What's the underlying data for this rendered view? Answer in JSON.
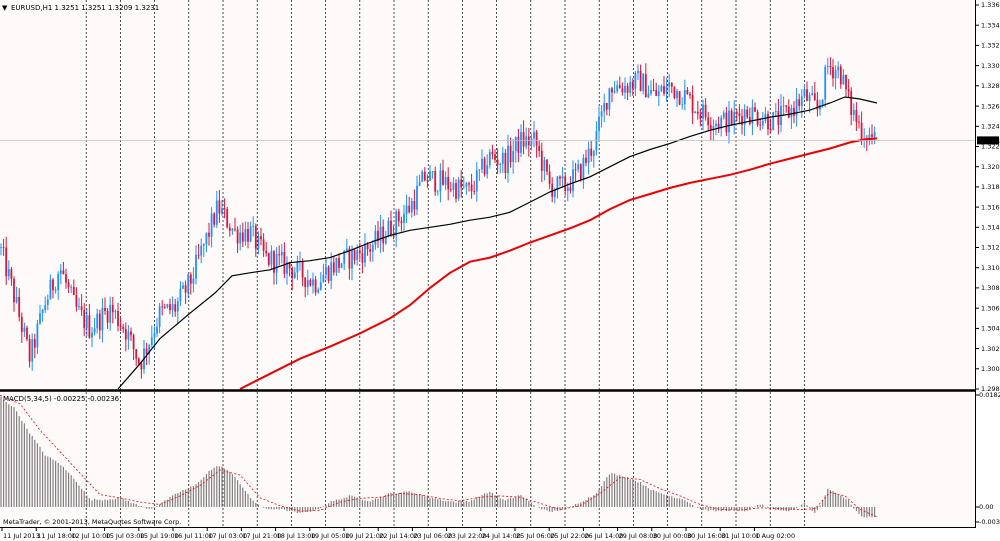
{
  "chart_header": {
    "title": "EURUSD,H1  1.3251 1.3251 1.3209 1.3231",
    "arrow": "▼"
  },
  "indicator_header": {
    "title": "MACD(5,34,5) -0.00225 -0.00236"
  },
  "watermark": "MetaTrader, © 2001-2013, MetaQuotes Software Corp.",
  "current_price": "1.3231",
  "colors": {
    "bg": "#FFFAFA",
    "bull": "#1E90FF",
    "bear": "#DC143C",
    "ma_fast": "#000000",
    "ma_slow": "#EE0000",
    "macd_hist": "#808080",
    "macd_signal": "#FF0000",
    "grid": "#000000"
  },
  "chart_data": [
    {
      "type": "candlestick",
      "symbol": "EURUSD",
      "timeframe": "H1",
      "ylim": [
        1.2985,
        1.3365
      ],
      "y_ticks": [
        "1.3365",
        "1.3345",
        "1.3325",
        "1.3305",
        "1.3285",
        "1.3265",
        "1.3245",
        "1.3225",
        "1.3205",
        "1.3185",
        "1.3165",
        "1.3145",
        "1.3125",
        "1.3105",
        "1.3085",
        "1.3065",
        "1.3045",
        "1.3025",
        "1.3005",
        "1.2985"
      ],
      "x_ticks": [
        "11 Jul 2013",
        "11 Jul 18:00",
        "12 Jul 10:00",
        "15 Jul 03:00",
        "15 Jul 19:00",
        "16 Jul 11:00",
        "17 Jul 03:00",
        "17 Jul 21:00",
        "18 Jul 13:00",
        "19 Jul 05:00",
        "19 Jul 21:00",
        "22 Jul 14:00",
        "23 Jul 06:00",
        "23 Jul 22:00",
        "24 Jul 14:00",
        "25 Jul 06:00",
        "25 Jul 22:00",
        "26 Jul 14:00",
        "29 Jul 08:00",
        "30 Jul 00:00",
        "30 Jul 16:00",
        "31 Jul 10:00",
        "1 Aug 02:00"
      ],
      "close_path": [
        [
          0,
          1.3125
        ],
        [
          12,
          1.3085
        ],
        [
          30,
          1.3015
        ],
        [
          45,
          1.307
        ],
        [
          60,
          1.3105
        ],
        [
          75,
          1.3065
        ],
        [
          90,
          1.3045
        ],
        [
          110,
          1.3065
        ],
        [
          125,
          1.3045
        ],
        [
          140,
          1.301
        ],
        [
          160,
          1.306
        ],
        [
          175,
          1.3065
        ],
        [
          190,
          1.309
        ],
        [
          205,
          1.313
        ],
        [
          218,
          1.3165
        ],
        [
          235,
          1.314
        ],
        [
          250,
          1.314
        ],
        [
          265,
          1.3115
        ],
        [
          280,
          1.311
        ],
        [
          300,
          1.31
        ],
        [
          315,
          1.309
        ],
        [
          330,
          1.3105
        ],
        [
          350,
          1.3115
        ],
        [
          370,
          1.3125
        ],
        [
          390,
          1.3145
        ],
        [
          410,
          1.3165
        ],
        [
          425,
          1.3195
        ],
        [
          440,
          1.319
        ],
        [
          455,
          1.3185
        ],
        [
          470,
          1.318
        ],
        [
          490,
          1.3215
        ],
        [
          505,
          1.321
        ],
        [
          520,
          1.323
        ],
        [
          535,
          1.323
        ],
        [
          550,
          1.3185
        ],
        [
          565,
          1.3185
        ],
        [
          580,
          1.32
        ],
        [
          595,
          1.323
        ],
        [
          610,
          1.3285
        ],
        [
          625,
          1.3285
        ],
        [
          640,
          1.329
        ],
        [
          655,
          1.3275
        ],
        [
          670,
          1.3285
        ],
        [
          685,
          1.3275
        ],
        [
          700,
          1.326
        ],
        [
          715,
          1.325
        ],
        [
          730,
          1.325
        ],
        [
          745,
          1.326
        ],
        [
          760,
          1.3255
        ],
        [
          775,
          1.325
        ],
        [
          790,
          1.326
        ],
        [
          805,
          1.3275
        ],
        [
          818,
          1.326
        ],
        [
          828,
          1.3305
        ],
        [
          840,
          1.33
        ],
        [
          850,
          1.3265
        ],
        [
          862,
          1.324
        ],
        [
          877,
          1.3231
        ]
      ],
      "ma_fast": [
        [
          118,
          1.2985
        ],
        [
          140,
          1.301
        ],
        [
          160,
          1.3035
        ],
        [
          190,
          1.306
        ],
        [
          215,
          1.308
        ],
        [
          232,
          1.3097
        ],
        [
          250,
          1.31
        ],
        [
          270,
          1.3103
        ],
        [
          290,
          1.311
        ],
        [
          310,
          1.3112
        ],
        [
          330,
          1.3115
        ],
        [
          350,
          1.3122
        ],
        [
          370,
          1.313
        ],
        [
          390,
          1.3137
        ],
        [
          410,
          1.3142
        ],
        [
          430,
          1.3145
        ],
        [
          450,
          1.3148
        ],
        [
          470,
          1.3152
        ],
        [
          490,
          1.3155
        ],
        [
          510,
          1.316
        ],
        [
          530,
          1.317
        ],
        [
          550,
          1.318
        ],
        [
          570,
          1.3188
        ],
        [
          590,
          1.3195
        ],
        [
          610,
          1.3205
        ],
        [
          630,
          1.3215
        ],
        [
          650,
          1.3222
        ],
        [
          670,
          1.3228
        ],
        [
          690,
          1.3235
        ],
        [
          710,
          1.3241
        ],
        [
          730,
          1.3246
        ],
        [
          750,
          1.325
        ],
        [
          770,
          1.3254
        ],
        [
          790,
          1.3257
        ],
        [
          810,
          1.3261
        ],
        [
          830,
          1.3268
        ],
        [
          845,
          1.3274
        ],
        [
          860,
          1.3272
        ],
        [
          877,
          1.3268
        ]
      ],
      "ma_slow": [
        [
          240,
          1.2985
        ],
        [
          270,
          1.3
        ],
        [
          300,
          1.3015
        ],
        [
          330,
          1.3027
        ],
        [
          360,
          1.304
        ],
        [
          390,
          1.3055
        ],
        [
          410,
          1.3068
        ],
        [
          430,
          1.3085
        ],
        [
          450,
          1.31
        ],
        [
          470,
          1.3111
        ],
        [
          490,
          1.3115
        ],
        [
          510,
          1.3122
        ],
        [
          530,
          1.313
        ],
        [
          550,
          1.3137
        ],
        [
          570,
          1.3144
        ],
        [
          590,
          1.3152
        ],
        [
          610,
          1.3163
        ],
        [
          630,
          1.3172
        ],
        [
          650,
          1.3178
        ],
        [
          670,
          1.3184
        ],
        [
          690,
          1.3189
        ],
        [
          710,
          1.3193
        ],
        [
          730,
          1.3197
        ],
        [
          750,
          1.3202
        ],
        [
          770,
          1.3208
        ],
        [
          790,
          1.3213
        ],
        [
          810,
          1.3218
        ],
        [
          830,
          1.3223
        ],
        [
          850,
          1.3229
        ],
        [
          865,
          1.3232
        ],
        [
          877,
          1.3233
        ]
      ]
    },
    {
      "type": "bar",
      "name": "MACD(5,34,5)",
      "ylim": [
        -0.00361,
        0.01823
      ],
      "y_ticks": [
        "0.01823",
        "0.00",
        "-0.00361"
      ],
      "hist_path": [
        [
          0,
          0.018
        ],
        [
          15,
          0.016
        ],
        [
          30,
          0.012
        ],
        [
          45,
          0.0085
        ],
        [
          60,
          0.007
        ],
        [
          75,
          0.0045
        ],
        [
          90,
          0.0012
        ],
        [
          105,
          0.0012
        ],
        [
          120,
          0.0015
        ],
        [
          135,
          0.0005
        ],
        [
          150,
          -0.0005
        ],
        [
          165,
          0.001
        ],
        [
          180,
          0.0025
        ],
        [
          195,
          0.0035
        ],
        [
          210,
          0.006
        ],
        [
          220,
          0.0068
        ],
        [
          235,
          0.005
        ],
        [
          250,
          0.0015
        ],
        [
          265,
          -0.0005
        ],
        [
          280,
          -0.0005
        ],
        [
          300,
          -0.0015
        ],
        [
          315,
          -0.0008
        ],
        [
          330,
          0.0008
        ],
        [
          350,
          0.0018
        ],
        [
          370,
          0.001
        ],
        [
          390,
          0.0022
        ],
        [
          410,
          0.0025
        ],
        [
          425,
          0.0018
        ],
        [
          440,
          0.0012
        ],
        [
          455,
          0.0008
        ],
        [
          470,
          0.001
        ],
        [
          490,
          0.0025
        ],
        [
          505,
          0.001
        ],
        [
          520,
          0.002
        ],
        [
          535,
          0.0002
        ],
        [
          550,
          -0.0012
        ],
        [
          565,
          -0.0005
        ],
        [
          580,
          0.0008
        ],
        [
          595,
          0.002
        ],
        [
          610,
          0.0055
        ],
        [
          625,
          0.005
        ],
        [
          640,
          0.004
        ],
        [
          655,
          0.0025
        ],
        [
          670,
          0.0018
        ],
        [
          685,
          0.0012
        ],
        [
          700,
          -0.0005
        ],
        [
          715,
          -0.001
        ],
        [
          730,
          -0.0008
        ],
        [
          745,
          -0.001
        ],
        [
          760,
          0.0005
        ],
        [
          775,
          -0.0008
        ],
        [
          790,
          -0.001
        ],
        [
          805,
          0.0008
        ],
        [
          815,
          -0.0015
        ],
        [
          828,
          0.003
        ],
        [
          840,
          0.002
        ],
        [
          850,
          0.0008
        ],
        [
          862,
          -0.0025
        ],
        [
          877,
          -0.00225
        ]
      ],
      "signal_path": [
        [
          0,
          0.0182
        ],
        [
          20,
          0.0168
        ],
        [
          40,
          0.0125
        ],
        [
          60,
          0.009
        ],
        [
          80,
          0.0055
        ],
        [
          100,
          0.002
        ],
        [
          120,
          0.0015
        ],
        [
          140,
          0.0008
        ],
        [
          160,
          0.0004
        ],
        [
          180,
          0.0018
        ],
        [
          200,
          0.0035
        ],
        [
          220,
          0.006
        ],
        [
          240,
          0.0052
        ],
        [
          260,
          0.0015
        ],
        [
          280,
          0.0002
        ],
        [
          300,
          -0.001
        ],
        [
          320,
          -0.0008
        ],
        [
          340,
          0.0008
        ],
        [
          360,
          0.0014
        ],
        [
          380,
          0.0016
        ],
        [
          400,
          0.0022
        ],
        [
          420,
          0.002
        ],
        [
          440,
          0.0014
        ],
        [
          460,
          0.001
        ],
        [
          480,
          0.0016
        ],
        [
          500,
          0.0018
        ],
        [
          520,
          0.0016
        ],
        [
          540,
          0.0006
        ],
        [
          560,
          -0.0006
        ],
        [
          580,
          0.0002
        ],
        [
          600,
          0.0022
        ],
        [
          620,
          0.0048
        ],
        [
          640,
          0.0045
        ],
        [
          660,
          0.003
        ],
        [
          680,
          0.0018
        ],
        [
          700,
          0.0004
        ],
        [
          720,
          -0.0006
        ],
        [
          740,
          -0.0008
        ],
        [
          760,
          -0.0002
        ],
        [
          780,
          -0.0004
        ],
        [
          800,
          -0.0006
        ],
        [
          815,
          -0.0004
        ],
        [
          830,
          0.0024
        ],
        [
          845,
          0.0018
        ],
        [
          860,
          -0.0006
        ],
        [
          877,
          -0.00236
        ]
      ]
    }
  ]
}
